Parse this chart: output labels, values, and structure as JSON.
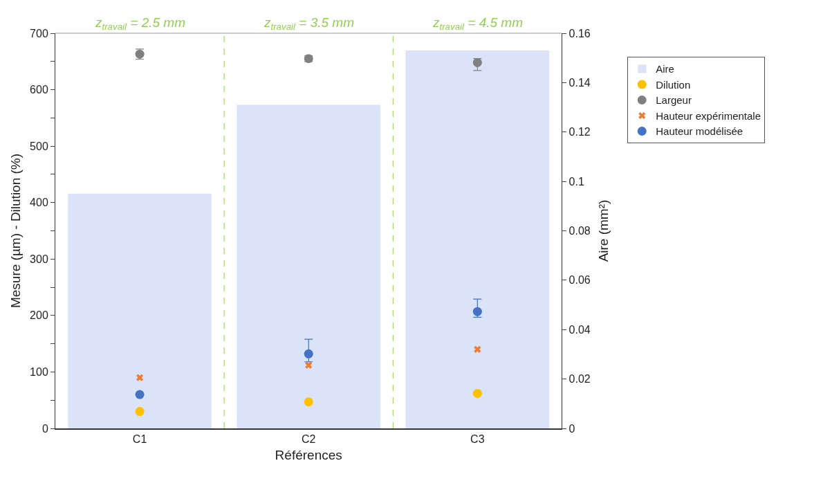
{
  "chart_data": {
    "type": "scatter",
    "categories": [
      "C1",
      "C2",
      "C3"
    ],
    "xlabel": "Références",
    "ylabel": "Mesure (µm) - Dilution (%)",
    "y2label": "Aire (mm²)",
    "ylim": [
      0,
      700
    ],
    "yticks": [
      0,
      {
        "value": 50,
        "label": null
      },
      100,
      {
        "value": 150,
        "label": null
      },
      200,
      {
        "value": 250,
        "label": null
      },
      300,
      {
        "value": 350,
        "label": null
      },
      400,
      {
        "value": 450,
        "label": null
      },
      500,
      {
        "value": 550,
        "label": null
      },
      600,
      {
        "value": 650,
        "label": null
      },
      700
    ],
    "y2lim": [
      0,
      0.16
    ],
    "y2ticks": [
      0,
      0.02,
      0.04,
      0.06,
      0.08,
      0.1,
      0.12,
      0.14,
      0.16
    ],
    "annotations": [
      "z$_{travail}$ = 2.5 mm",
      "z$_{travail}$ = 3.5 mm",
      "z$_{travail}$ = 4.5 mm"
    ],
    "series": [
      {
        "name": "Aire",
        "type": "bar",
        "axis": "y2",
        "color": "#dae3f8",
        "values": [
          0.095,
          0.131,
          0.153
        ]
      },
      {
        "name": "Dilution",
        "color": "#ffc000",
        "marker": "circle",
        "values": [
          30,
          47,
          62
        ]
      },
      {
        "name": "Largeur",
        "color": "#808080",
        "values": [
          663,
          655,
          648
        ],
        "errors": [
          9,
          5,
          [
            634,
            655
          ]
        ]
      },
      {
        "name": "Hauteur expérimentale",
        "color": "#ed7d31",
        "marker": "cross",
        "values": [
          90,
          112,
          140
        ]
      },
      {
        "name": "Hauteur modélisée",
        "color": "#4472c4",
        "marker": "circle",
        "values": [
          60,
          132,
          207
        ],
        "errors": [
          null,
          [
            118,
            158
          ],
          [
            197,
            229
          ]
        ]
      }
    ],
    "legend": "top right"
  }
}
